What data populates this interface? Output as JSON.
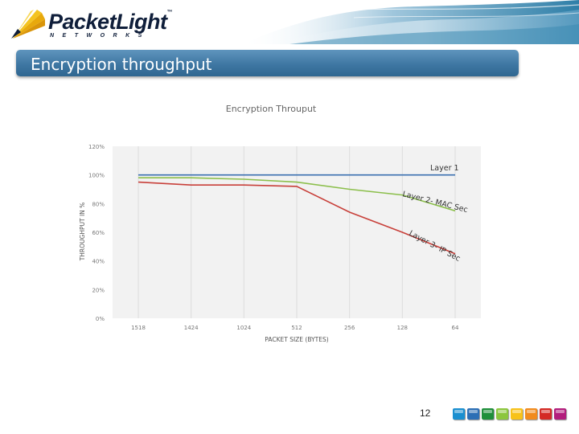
{
  "header": {
    "logo_word": "PacketLight",
    "logo_tm": "™",
    "logo_sub": "NETWORKS"
  },
  "slide": {
    "title": "Encryption throughput",
    "page_number": "12"
  },
  "footer_squares": [
    {
      "color": "#1a8fd0"
    },
    {
      "color": "#2c6fb5"
    },
    {
      "color": "#1f8f3a"
    },
    {
      "color": "#8cc63e"
    },
    {
      "color": "#f7c21a"
    },
    {
      "color": "#f18b1d"
    },
    {
      "color": "#d42a25"
    },
    {
      "color": "#b21e7c"
    }
  ],
  "chart_data": {
    "type": "line",
    "title": "Encryption Throuput",
    "xlabel": "PACKET SIZE (BYTES)",
    "ylabel": "THROUGHPUT IN %",
    "categories": [
      "1518",
      "1424",
      "1024",
      "512",
      "256",
      "128",
      "64"
    ],
    "y_ticks": [
      "0%",
      "20%",
      "40%",
      "60%",
      "80%",
      "100%",
      "120%"
    ],
    "ylim": [
      0,
      120
    ],
    "grid": "vertical",
    "series": [
      {
        "name": "Layer 1",
        "color": "#3a6fb0",
        "values": [
          100,
          100,
          100,
          100,
          100,
          100,
          100
        ]
      },
      {
        "name": "Layer 2- MAC Sec",
        "color": "#8cbf4c",
        "values": [
          98,
          98,
          97,
          95,
          90,
          86,
          75
        ]
      },
      {
        "name": "Layer 3- IP Sec",
        "color": "#c8403a",
        "values": [
          95,
          93,
          93,
          92,
          74,
          60,
          45
        ]
      }
    ]
  }
}
